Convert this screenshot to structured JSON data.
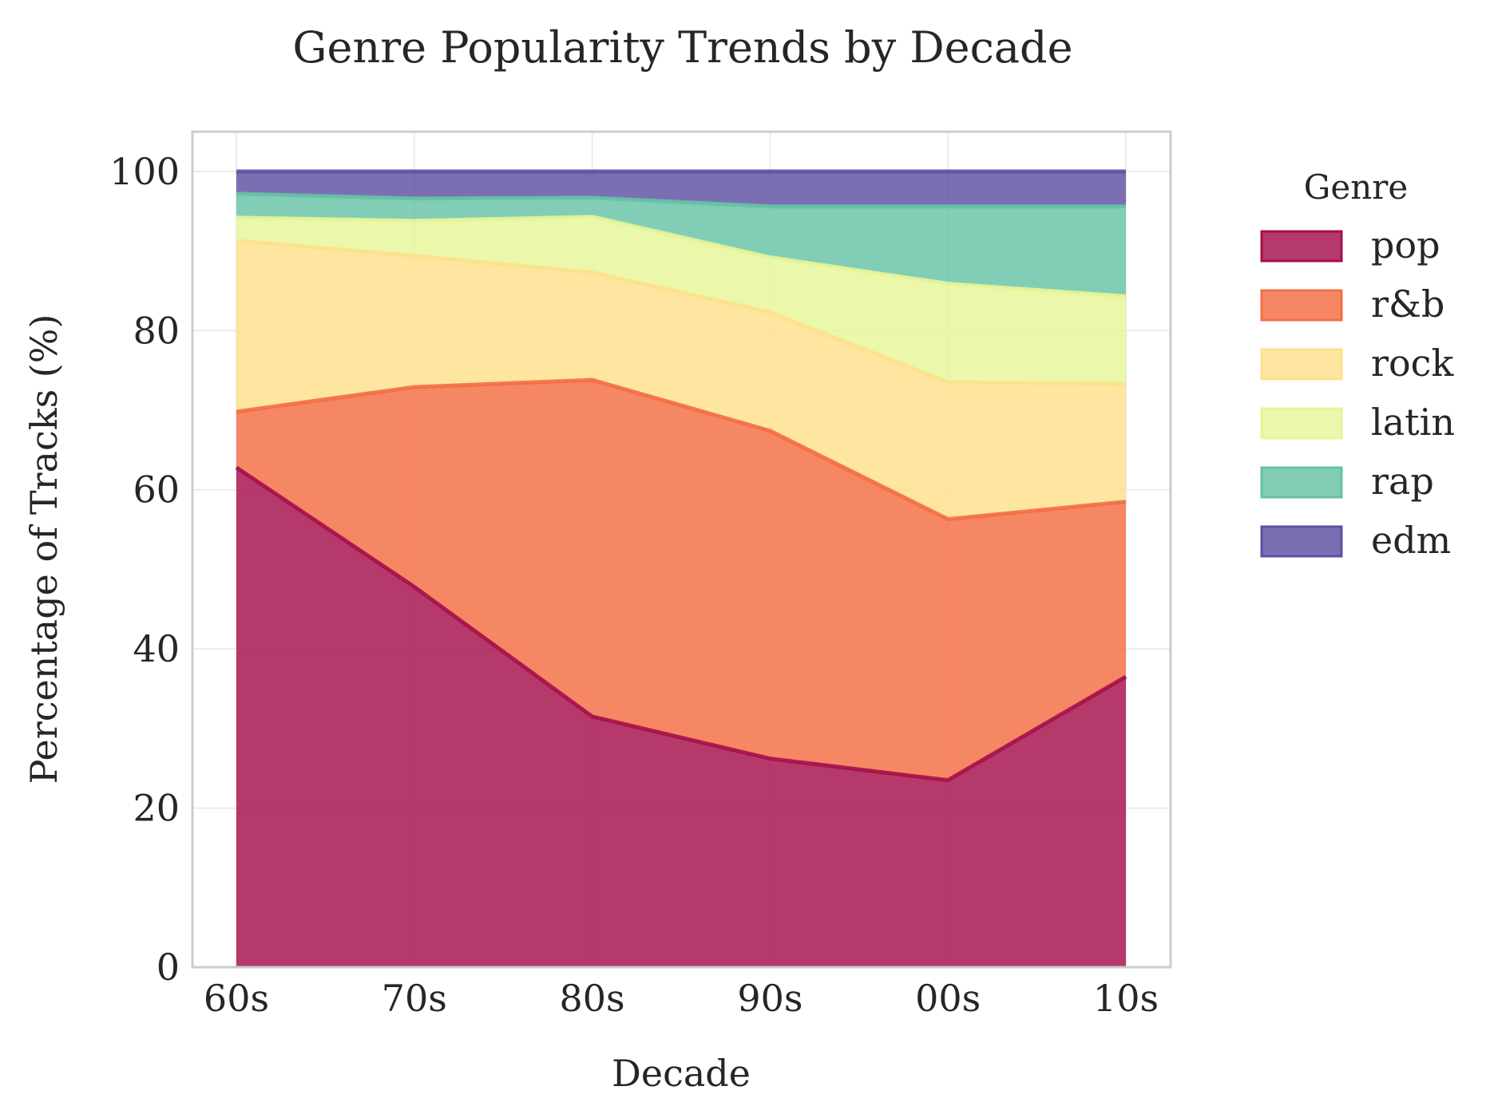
{
  "chart_data": {
    "type": "area",
    "stacked": true,
    "title": "Genre Popularity Trends by Decade",
    "xlabel": "Decade",
    "ylabel": "Percentage of Tracks (%)",
    "categories": [
      "60s",
      "70s",
      "80s",
      "90s",
      "00s",
      "10s"
    ],
    "ylim": [
      0,
      105
    ],
    "yticks": [
      0,
      20,
      40,
      60,
      80,
      100
    ],
    "grid": true,
    "legend": {
      "title": "Genre",
      "placement": "outside-right"
    },
    "series": [
      {
        "name": "pop",
        "color": "#a50f4a",
        "values": [
          62.8,
          47.8,
          31.5,
          26.2,
          23.5,
          36.5
        ]
      },
      {
        "name": "r&b",
        "color": "#f46d43",
        "values": [
          7.0,
          25.1,
          42.3,
          41.2,
          32.8,
          22.0
        ]
      },
      {
        "name": "rock",
        "color": "#fee08b",
        "values": [
          21.5,
          16.5,
          13.5,
          14.9,
          17.2,
          14.8
        ]
      },
      {
        "name": "latin",
        "color": "#e6f598",
        "values": [
          2.9,
          4.4,
          7.0,
          6.9,
          12.4,
          11.0
        ]
      },
      {
        "name": "rap",
        "color": "#66c2a5",
        "values": [
          3.0,
          2.8,
          2.4,
          6.4,
          9.7,
          11.3
        ]
      },
      {
        "name": "edm",
        "color": "#5e4fa2",
        "values": [
          2.8,
          3.4,
          3.3,
          4.4,
          4.4,
          4.4
        ]
      }
    ]
  }
}
